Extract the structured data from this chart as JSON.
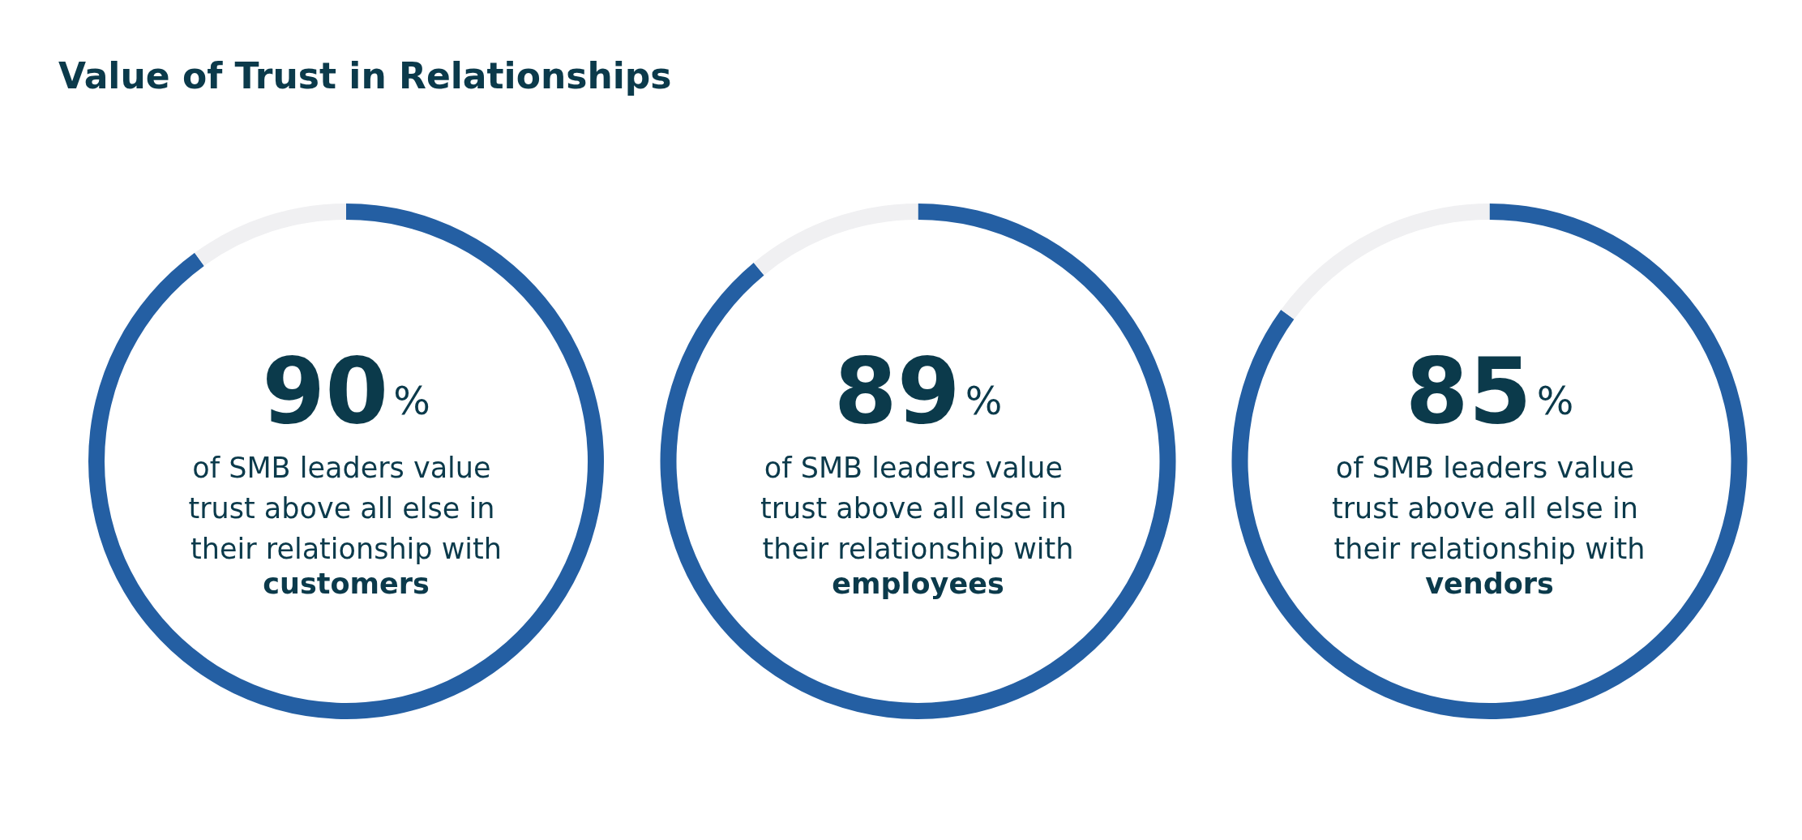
{
  "chart_data": [
    {
      "type": "donut",
      "title": "Value of Trust in Relationships",
      "categories": [
        null,
        null
      ],
      "values": [
        90,
        10
      ],
      "colors": [
        "#245fa3",
        "#f0f0f2"
      ],
      "value_labels": [
        "90%",
        null
      ],
      "annotations": [
        "of SMB leaders value trust above all else in their relationship with",
        "customers"
      ]
    },
    {
      "type": "donut",
      "categories": [
        null,
        null
      ],
      "values": [
        89,
        11
      ],
      "colors": [
        "#245fa3",
        "#f0f0f2"
      ],
      "value_labels": [
        "89%",
        null
      ],
      "annotations": [
        "of SMB leaders value trust above all else in their relationship with",
        "employees"
      ]
    },
    {
      "type": "donut",
      "categories": [
        null,
        null
      ],
      "values": [
        85,
        15
      ],
      "colors": [
        "#245fa3",
        "#f0f0f2"
      ],
      "value_labels": [
        "85%",
        null
      ],
      "annotations": [
        "of SMB leaders value trust above all else in their relationship with",
        "vendors"
      ]
    }
  ]
}
